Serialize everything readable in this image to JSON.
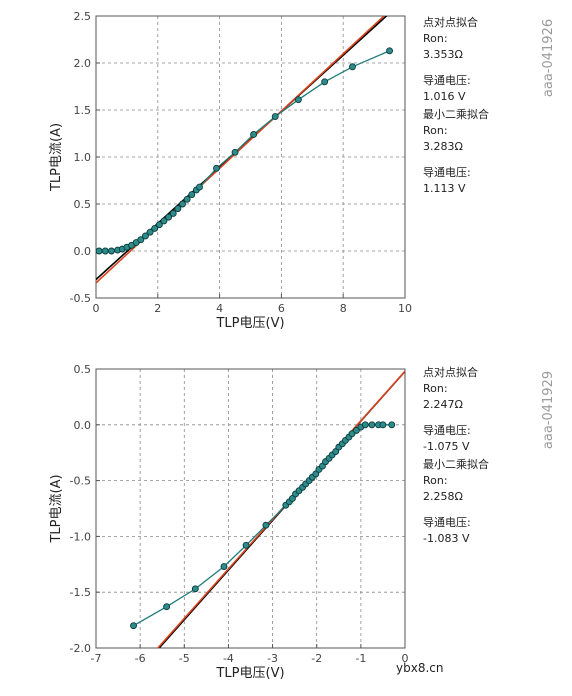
{
  "chart_data": [
    {
      "type": "scatter",
      "xlabel": "TLP电压(V)",
      "ylabel": "TLP电流(A)",
      "xlim": [
        0,
        10
      ],
      "ylim": [
        -0.5,
        2.5
      ],
      "x_ticks": [
        "0",
        "2",
        "4",
        "6",
        "8",
        "10"
      ],
      "y_ticks": [
        "-0.5",
        "0.0",
        "0.5",
        "1.0",
        "1.5",
        "2.0",
        "2.5"
      ],
      "grid": true,
      "image_id": "aaa-041926",
      "annotations": [
        "点对点拟合",
        "Ron:",
        "3.353Ω",
        "导通电压:",
        "1.016 V",
        "最小二乘拟合",
        "Ron:",
        "3.283Ω",
        "导通电压:",
        "1.113 V"
      ],
      "series": [
        {
          "x": [
            0.1,
            0.3,
            0.5,
            0.7,
            0.85,
            1.0,
            1.15,
            1.3,
            1.45,
            1.6,
            1.75,
            1.9,
            2.05,
            2.2,
            2.35,
            2.5,
            2.65,
            2.8,
            2.95,
            3.1,
            3.25,
            3.35,
            3.9,
            4.5,
            5.1,
            5.8,
            6.55,
            7.4,
            8.3,
            9.5
          ],
          "y": [
            0.0,
            0.0,
            0.0,
            0.01,
            0.02,
            0.04,
            0.06,
            0.09,
            0.12,
            0.16,
            0.2,
            0.24,
            0.28,
            0.32,
            0.36,
            0.4,
            0.45,
            0.5,
            0.55,
            0.6,
            0.65,
            0.68,
            0.88,
            1.05,
            1.24,
            1.43,
            1.61,
            1.8,
            1.96,
            2.13
          ]
        }
      ],
      "fit_lines": [
        {
          "kind": "point-to-point",
          "ron": 3.353,
          "vt": 1.016,
          "color": "#000000"
        },
        {
          "kind": "least-squares",
          "ron": 3.283,
          "vt": 1.113,
          "color": "#d9441f"
        }
      ]
    },
    {
      "type": "scatter",
      "xlabel": "TLP电压(V)",
      "ylabel": "TLP电流(A)",
      "xlim": [
        -7,
        0
      ],
      "ylim": [
        -2.0,
        0.5
      ],
      "x_ticks": [
        "-7",
        "-6",
        "-5",
        "-4",
        "-3",
        "-2",
        "-1",
        "0"
      ],
      "y_ticks": [
        "-2.0",
        "-1.5",
        "-1.0",
        "-0.5",
        "0.0",
        "0.5"
      ],
      "grid": true,
      "image_id": "aaa-041929",
      "annotations": [
        "点对点拟合",
        "Ron:",
        "2.247Ω",
        "导通电压:",
        "-1.075 V",
        "最小二乘拟合",
        "Ron:",
        "2.258Ω",
        "导通电压:",
        "-1.083 V"
      ],
      "series": [
        {
          "x": [
            -6.15,
            -5.4,
            -4.75,
            -4.1,
            -3.6,
            -3.15,
            -2.7,
            -2.62,
            -2.55,
            -2.48,
            -2.4,
            -2.32,
            -2.25,
            -2.17,
            -2.1,
            -2.02,
            -1.95,
            -1.87,
            -1.8,
            -1.72,
            -1.65,
            -1.57,
            -1.5,
            -1.42,
            -1.35,
            -1.27,
            -1.2,
            -1.1,
            -1.0,
            -0.9,
            -0.75,
            -0.6,
            -0.5,
            -0.3
          ],
          "y": [
            -1.8,
            -1.63,
            -1.47,
            -1.27,
            -1.08,
            -0.9,
            -0.72,
            -0.69,
            -0.66,
            -0.62,
            -0.59,
            -0.56,
            -0.53,
            -0.5,
            -0.47,
            -0.44,
            -0.4,
            -0.37,
            -0.33,
            -0.3,
            -0.27,
            -0.24,
            -0.2,
            -0.17,
            -0.14,
            -0.11,
            -0.08,
            -0.05,
            -0.02,
            0.0,
            0.0,
            0.0,
            0.0,
            0.0
          ]
        }
      ],
      "fit_lines": [
        {
          "kind": "point-to-point",
          "ron": 2.247,
          "vt": -1.075,
          "color": "#000000"
        },
        {
          "kind": "least-squares",
          "ron": 2.258,
          "vt": -1.083,
          "color": "#d9441f"
        }
      ]
    }
  ],
  "colors": {
    "series_stroke": "#1f7a7a",
    "marker_fill": "#2e8b8b",
    "marker_edge": "#0b3c3c",
    "grid": "#8a8a8a",
    "fit_point_to_point": "#000000",
    "fit_least_squares": "#d9441f"
  },
  "watermark": "ybx8.cn"
}
